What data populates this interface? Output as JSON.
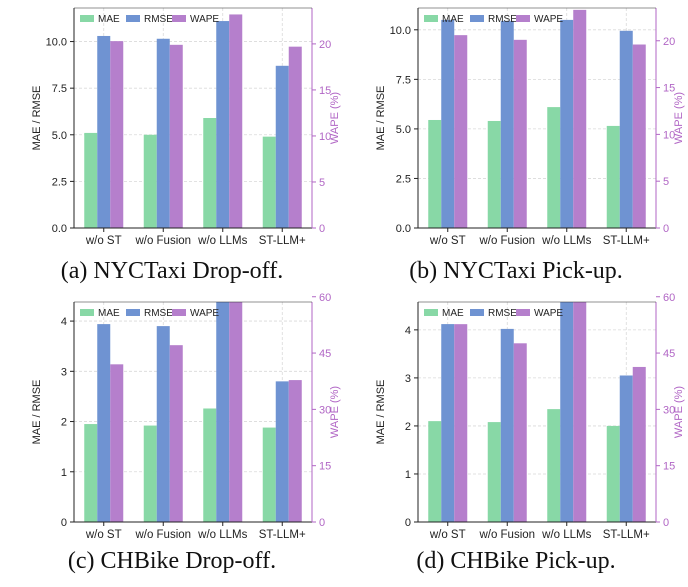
{
  "colors": {
    "mae": "#88d8a6",
    "rmse": "#6f93d2",
    "wape": "#b57fcc",
    "wape_axis": "#b166c5"
  },
  "charts": [
    {
      "caption": "(a) NYCTaxi Drop-off.",
      "chart_data": {
        "type": "bar",
        "categories": [
          "w/o ST",
          "w/o Fusion",
          "w/o LLMs",
          "ST-LLM+"
        ],
        "series": [
          {
            "name": "MAE",
            "axis": "left",
            "values": [
              5.1,
              5.0,
              5.9,
              4.9
            ]
          },
          {
            "name": "RMSE",
            "axis": "left",
            "values": [
              10.3,
              10.15,
              11.1,
              8.7
            ]
          },
          {
            "name": "WAPE",
            "axis": "right",
            "values": [
              20.3,
              19.9,
              23.2,
              19.7
            ]
          }
        ],
        "ylabel": "MAE / RMSE",
        "y2label": "WAPE (%)",
        "ylim": [
          0,
          11.8
        ],
        "y2lim": [
          0,
          23.9
        ],
        "yticks": [
          "0.0",
          "2.5",
          "5.0",
          "7.5",
          "10.0"
        ],
        "y2ticks": [
          "0",
          "5",
          "10",
          "15",
          "20"
        ],
        "legend": "top-left",
        "grid": true
      }
    },
    {
      "caption": "(b) NYCTaxi Pick-up.",
      "chart_data": {
        "type": "bar",
        "categories": [
          "w/o ST",
          "w/o Fusion",
          "w/o LLMs",
          "ST-LLM+"
        ],
        "series": [
          {
            "name": "MAE",
            "axis": "left",
            "values": [
              5.45,
              5.4,
              6.1,
              5.15
            ]
          },
          {
            "name": "RMSE",
            "axis": "left",
            "values": [
              10.5,
              10.45,
              10.5,
              9.95
            ]
          },
          {
            "name": "WAPE",
            "axis": "right",
            "values": [
              20.6,
              20.1,
              23.3,
              19.6
            ]
          }
        ],
        "ylabel": "MAE / RMSE",
        "y2label": "WAPE (%)",
        "ylim": [
          0,
          11.1
        ],
        "y2lim": [
          0,
          23.5
        ],
        "yticks": [
          "0.0",
          "2.5",
          "5.0",
          "7.5",
          "10.0"
        ],
        "y2ticks": [
          "0",
          "5",
          "10",
          "15",
          "20"
        ],
        "legend": "top-left",
        "grid": true
      }
    },
    {
      "caption": "(c) CHBike Drop-off.",
      "chart_data": {
        "type": "bar",
        "categories": [
          "w/o ST",
          "w/o Fusion",
          "w/o LLMs",
          "ST-LLM+"
        ],
        "series": [
          {
            "name": "MAE",
            "axis": "left",
            "values": [
              1.95,
              1.92,
              2.26,
              1.88
            ]
          },
          {
            "name": "RMSE",
            "axis": "left",
            "values": [
              3.94,
              3.9,
              4.38,
              2.8
            ]
          },
          {
            "name": "WAPE",
            "axis": "right",
            "values": [
              42.0,
              47.1,
              58.6,
              37.8
            ]
          }
        ],
        "ylabel": "MAE / RMSE",
        "y2label": "WAPE (%)",
        "ylim": [
          0,
          4.38
        ],
        "y2lim": [
          0,
          58.6
        ],
        "yticks": [
          "0",
          "1",
          "2",
          "3",
          "4"
        ],
        "y2ticks": [
          "0",
          "15",
          "30",
          "45",
          "60"
        ],
        "legend": "top-left",
        "grid": true
      }
    },
    {
      "caption": "(d) CHBike Pick-up.",
      "chart_data": {
        "type": "bar",
        "categories": [
          "w/o ST",
          "w/o Fusion",
          "w/o LLMs",
          "ST-LLM+"
        ],
        "series": [
          {
            "name": "MAE",
            "axis": "left",
            "values": [
              2.1,
              2.08,
              2.35,
              2.0
            ]
          },
          {
            "name": "RMSE",
            "axis": "left",
            "values": [
              4.12,
              4.02,
              4.58,
              3.05
            ]
          },
          {
            "name": "WAPE",
            "axis": "right",
            "values": [
              52.7,
              47.6,
              58.6,
              41.3
            ]
          }
        ],
        "ylabel": "MAE / RMSE",
        "y2label": "WAPE (%)",
        "ylim": [
          0,
          4.58
        ],
        "y2lim": [
          0,
          58.6
        ],
        "yticks": [
          "0",
          "1",
          "2",
          "3",
          "4"
        ],
        "y2ticks": [
          "0",
          "15",
          "30",
          "45",
          "60"
        ],
        "legend": "top-left",
        "grid": true
      }
    }
  ]
}
